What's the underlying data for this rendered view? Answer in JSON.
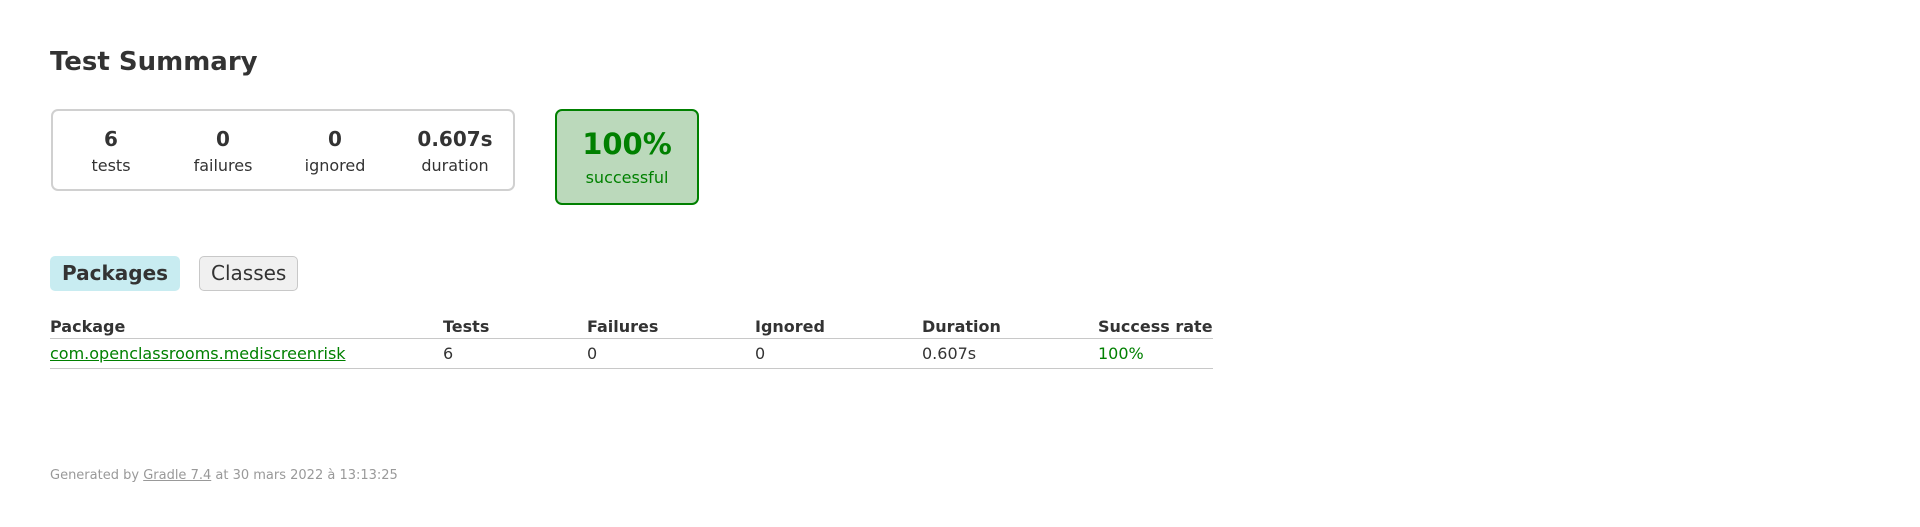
{
  "page": {
    "title": "Test Summary"
  },
  "summary": {
    "tests": {
      "value": "6",
      "label": "tests"
    },
    "failures": {
      "value": "0",
      "label": "failures"
    },
    "ignored": {
      "value": "0",
      "label": "ignored"
    },
    "duration": {
      "value": "0.607s",
      "label": "duration"
    },
    "success_rate": {
      "value": "100%",
      "label": "successful"
    }
  },
  "tabs": [
    {
      "label": "Packages",
      "selected": true
    },
    {
      "label": "Classes",
      "selected": false
    }
  ],
  "table": {
    "headers": [
      "Package",
      "Tests",
      "Failures",
      "Ignored",
      "Duration",
      "Success rate"
    ],
    "rows": [
      {
        "package": "com.openclassrooms.mediscreenrisk",
        "tests": "6",
        "failures": "0",
        "ignored": "0",
        "duration": "0.607s",
        "success_rate": "100%"
      }
    ]
  },
  "footer": {
    "prefix": "Generated by ",
    "link": "Gradle 7.4",
    "suffix": " at 30 mars 2022 à 13:13:25"
  },
  "colors": {
    "success": "#008000",
    "success_bg": "#bbd9bb",
    "selected_tab_bg": "#c8ecf1",
    "text": "#333333",
    "footer_text": "#999999"
  }
}
